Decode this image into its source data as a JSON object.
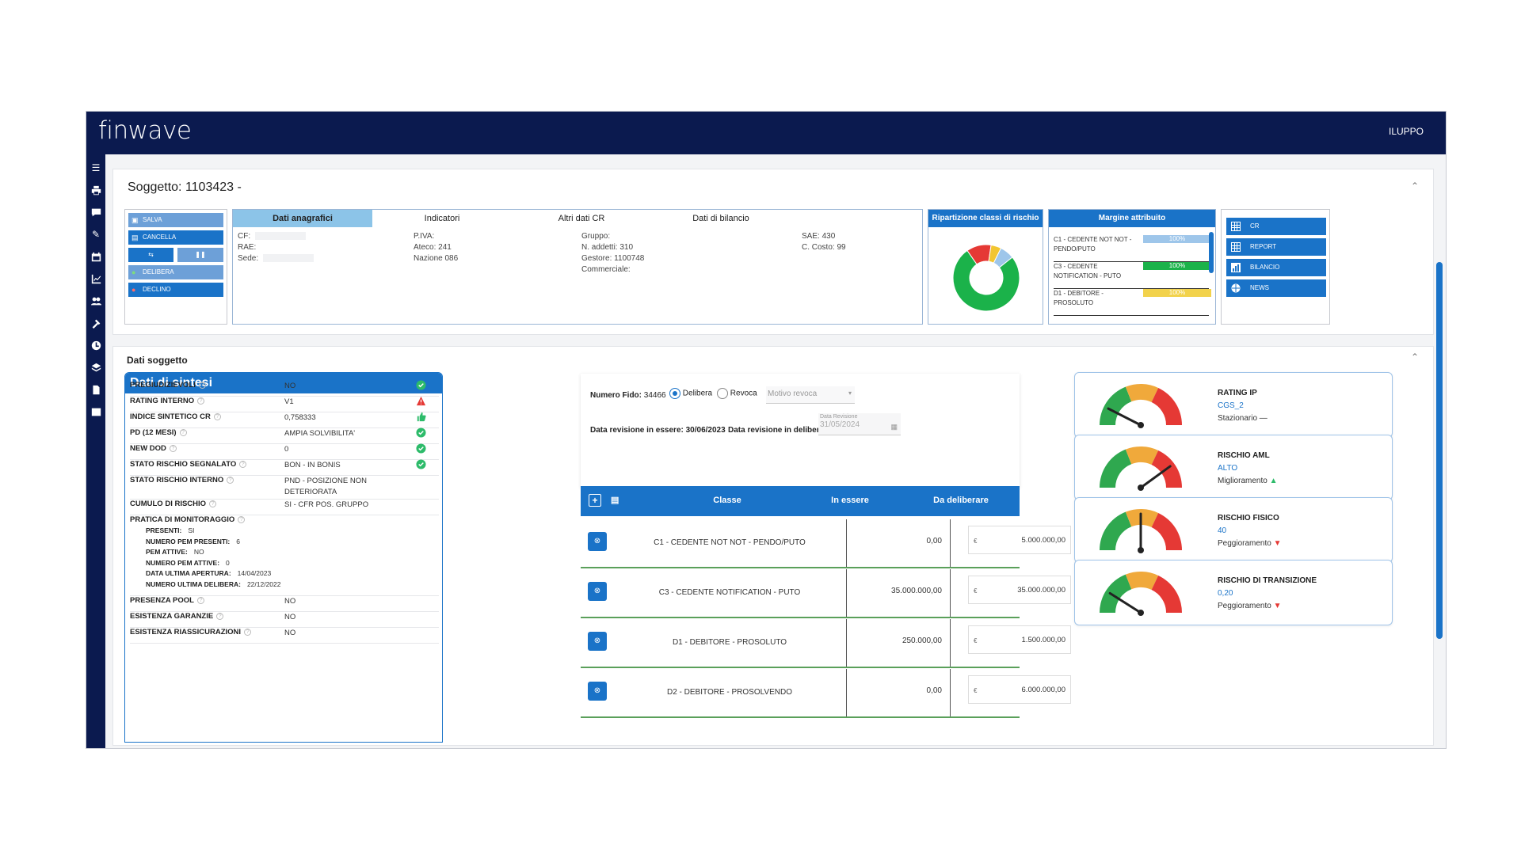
{
  "app": {
    "logo": "finwave",
    "user": "ILUPPO"
  },
  "soggetto": {
    "title": "Soggetto: 1103423 -"
  },
  "actions": {
    "salva": "SALVA",
    "cancella": "CANCELLA",
    "delibera": "DELIBERA",
    "declino": "DECLINO"
  },
  "tabs": [
    "Dati anagrafici",
    "Indicatori",
    "Altri dati CR",
    "Dati di bilancio"
  ],
  "anagrafica": {
    "cf": "CF:",
    "rae": "RAE:",
    "sede": "Sede:",
    "piva": "P.IVA:",
    "ateco": "Ateco: 241",
    "nazione": "Nazione 086",
    "gruppo": "Gruppo:",
    "addetti": "N. addetti: 310",
    "gestore": "Gestore: 1100748",
    "commerciale": "Commerciale:",
    "sae": "SAE: 430",
    "costo": "C. Costo: 99"
  },
  "ripartizione": {
    "title": "Ripartizione classi di rischio",
    "colors": [
      "#1bb24a",
      "#e53935",
      "#f2c531",
      "#9ec6ea"
    ]
  },
  "margine": {
    "title": "Margine attribuito",
    "rows": [
      {
        "label": "C1 - CEDENTE NOT NOT - PENDO/PUTO",
        "value": "100%",
        "color": "#9ec6ea"
      },
      {
        "label": "C3 - CEDENTE NOTIFICATION - PUTO",
        "value": "100%",
        "color": "#1bb24a"
      },
      {
        "label": "D1 - DEBITORE - PROSOLUTO",
        "value": "100%",
        "color": "#f2d24b"
      }
    ]
  },
  "side_buttons": [
    "CR",
    "REPORT",
    "BILANCIO",
    "NEWS"
  ],
  "dati_soggetto": {
    "title": "Dati soggetto"
  },
  "sintesi": {
    "title": "Dati di sintesi",
    "rows": [
      {
        "label": "PREGIUDIZIEVOLI",
        "value": "NO",
        "status": "ok"
      },
      {
        "label": "RATING INTERNO",
        "value": "V1",
        "status": "warn"
      },
      {
        "label": "INDICE SINTETICO CR",
        "value": "0,758333",
        "status": "thumb"
      },
      {
        "label": "PD (12 MESI)",
        "value": "AMPIA SOLVIBILITA'",
        "status": "ok"
      },
      {
        "label": "NEW DOD",
        "value": "0",
        "status": "ok"
      },
      {
        "label": "STATO RISCHIO SEGNALATO",
        "value": "BON - IN BONIS",
        "status": "ok"
      },
      {
        "label": "STATO RISCHIO INTERNO",
        "value": "PND - POSIZIONE NON DETERIORATA",
        "status": ""
      },
      {
        "label": "CUMULO DI RISCHIO",
        "value": "SI - CFR POS. GRUPPO",
        "status": ""
      }
    ],
    "pratica": {
      "label": "PRATICA DI MONITORAGGIO",
      "items": [
        {
          "label": "PRESENTI:",
          "value": "SI"
        },
        {
          "label": "NUMERO PEM PRESENTI:",
          "value": "6"
        },
        {
          "label": "PEM ATTIVE:",
          "value": "NO"
        },
        {
          "label": "NUMERO PEM ATTIVE:",
          "value": "0"
        },
        {
          "label": "DATA ULTIMA APERTURA:",
          "value": "14/04/2023"
        },
        {
          "label": "NUMERO ULTIMA DELIBERA:",
          "value": "22/12/2022"
        }
      ]
    },
    "tail": [
      {
        "label": "PRESENZA POOL",
        "value": "NO"
      },
      {
        "label": "ESISTENZA GARANZIE",
        "value": "NO"
      },
      {
        "label": "ESISTENZA RIASSICURAZIONI",
        "value": "NO"
      }
    ]
  },
  "fido": {
    "numero_label": "Numero Fido:",
    "numero": "34466",
    "delibera": "Delibera",
    "revoca": "Revoca",
    "motivo_placeholder": "Motivo revoca",
    "rev_essere": "Data revisione in essere: 30/06/2023",
    "rev_delibera_label": "Data revisione in delibera:",
    "data_revisione_caption": "Data Revisione",
    "data_revisione_value": "31/05/2024"
  },
  "table": {
    "headers": [
      "Classe",
      "In essere",
      "Da deliberare"
    ],
    "rows": [
      {
        "classe": "C1 - CEDENTE NOT NOT - PENDO/PUTO",
        "essere": "0,00",
        "deliberare": "5.000.000,00"
      },
      {
        "classe": "C3 - CEDENTE NOTIFICATION - PUTO",
        "essere": "35.000.000,00",
        "deliberare": "35.000.000,00"
      },
      {
        "classe": "D1 - DEBITORE - PROSOLUTO",
        "essere": "250.000,00",
        "deliberare": "1.500.000,00"
      },
      {
        "classe": "D2 - DEBITORE - PROSOLVENDO",
        "essere": "0,00",
        "deliberare": "6.000.000,00"
      }
    ],
    "currency": "€"
  },
  "gauges": [
    {
      "title": "RATING IP",
      "value": "CGS_2",
      "trend": "Stazionario",
      "trend_dir": "flat",
      "needle": 0.15
    },
    {
      "title": "RISCHIO AML",
      "value": "ALTO",
      "trend": "Miglioramento",
      "trend_dir": "up",
      "needle": 0.8
    },
    {
      "title": "RISCHIO FISICO",
      "value": "40",
      "trend": "Peggioramento",
      "trend_dir": "down",
      "needle": 0.5
    },
    {
      "title": "RISCHIO DI TRANSIZIONE",
      "value": "0,20",
      "trend": "Peggioramento",
      "trend_dir": "down",
      "needle": 0.18
    }
  ]
}
